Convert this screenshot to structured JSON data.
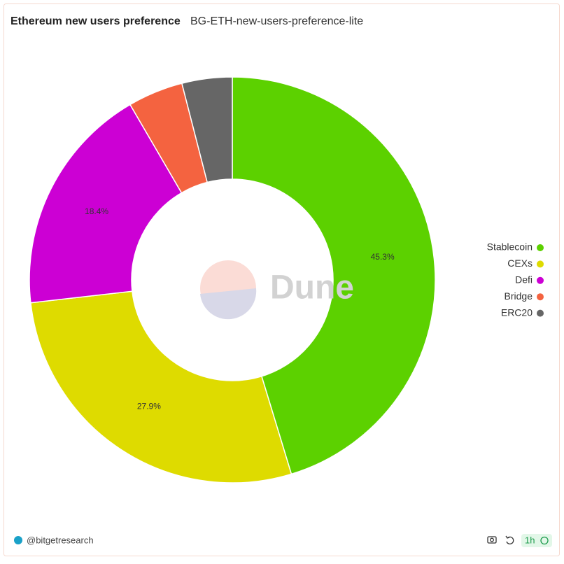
{
  "header": {
    "title": "Ethereum new users preference",
    "subtitle": "BG-ETH-new-users-preference-lite"
  },
  "chart_data": {
    "type": "donut",
    "categories": [
      "Stablecoin",
      "CEXs",
      "Defi",
      "Bridge",
      "ERC20"
    ],
    "values": [
      45.3,
      27.9,
      18.4,
      4.4,
      4.0
    ],
    "value_labels": [
      "45.3%",
      "27.9%",
      "18.4%",
      null,
      null
    ],
    "colors": [
      "#5cd100",
      "#dedb00",
      "#cc00d4",
      "#f46340",
      "#666666"
    ],
    "legend": "right",
    "watermark": "Dune"
  },
  "footer": {
    "author": "@bitgetresearch",
    "refresh": "1h"
  }
}
